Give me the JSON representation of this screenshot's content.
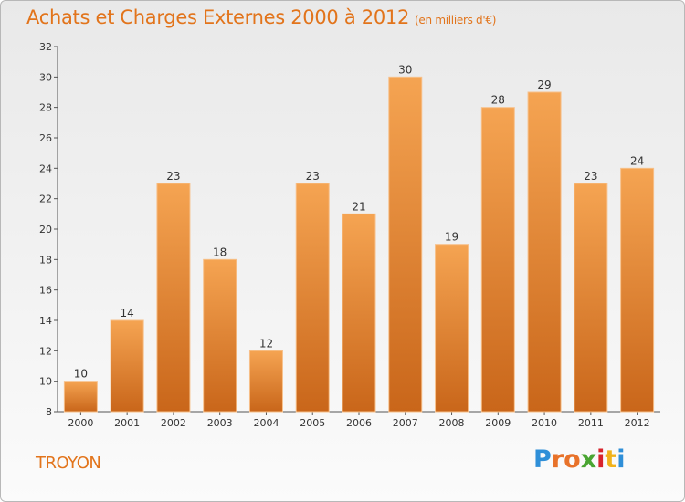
{
  "header": {
    "title": "Achats et Charges Externes 2000 à 2012",
    "subtitle": "(en milliers d'€)"
  },
  "footer": {
    "commune": "TROYON",
    "logo_text": "Proxiti",
    "logo_colors": [
      "#2f8fd8",
      "#e8722a",
      "#e8722a",
      "#4aa532",
      "#d8242c",
      "#f1b21b",
      "#2f8fd8"
    ]
  },
  "colors": {
    "bar_top": "#f5a452",
    "bar_bottom": "#c9661a",
    "accent": "#e2741b"
  },
  "chart_data": {
    "type": "bar",
    "title": "Achats et Charges Externes 2000 à 2012",
    "subtitle": "(en milliers d'€)",
    "categories": [
      "2000",
      "2001",
      "2002",
      "2003",
      "2004",
      "2005",
      "2006",
      "2007",
      "2008",
      "2009",
      "2010",
      "2011",
      "2012"
    ],
    "values": [
      10,
      14,
      23,
      18,
      12,
      23,
      21,
      30,
      19,
      28,
      29,
      23,
      24
    ],
    "ylim": [
      8,
      32
    ],
    "yticks": [
      8,
      10,
      12,
      14,
      16,
      18,
      20,
      22,
      24,
      26,
      28,
      30,
      32
    ],
    "grid": false,
    "xlabel": "",
    "ylabel": ""
  }
}
